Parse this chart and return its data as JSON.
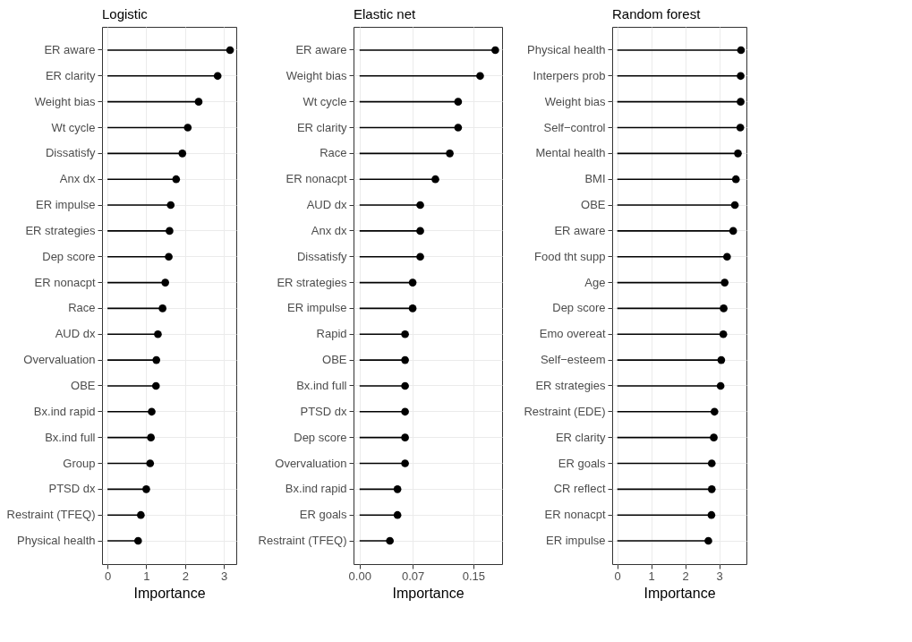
{
  "chart_data": [
    {
      "type": "lollipop",
      "title": "Logistic",
      "xlabel": "Importance",
      "orientation": "horizontal",
      "color": "#000000",
      "grid": true,
      "xlim": [
        -0.14,
        3.32
      ],
      "xticks": [
        0,
        1,
        2,
        3
      ],
      "categories": [
        "ER aware",
        "ER clarity",
        "Weight bias",
        "Wt cycle",
        "Dissatisfy",
        "Anx dx",
        "ER impulse",
        "ER strategies",
        "Dep score",
        "ER nonacpt",
        "Race",
        "AUD dx",
        "Overvaluation",
        "OBE",
        "Bx.ind rapid",
        "Bx.ind full",
        "Group",
        "PTSD dx",
        "Restraint (TFEQ)",
        "Physical health"
      ],
      "values": [
        3.16,
        2.84,
        2.35,
        2.07,
        1.93,
        1.77,
        1.63,
        1.6,
        1.58,
        1.49,
        1.42,
        1.3,
        1.26,
        1.25,
        1.14,
        1.12,
        1.1,
        1.0,
        0.86,
        0.79
      ]
    },
    {
      "type": "lollipop",
      "title": "Elastic net",
      "xlabel": "Importance",
      "orientation": "horizontal",
      "color": "#000000",
      "grid": true,
      "xlim": [
        -0.008,
        0.188
      ],
      "xticks": [
        {
          "value": 0,
          "label": "0.00"
        },
        0.07,
        0.15
      ],
      "categories": [
        "ER aware",
        "Weight bias",
        "Wt cycle",
        "ER clarity",
        "Race",
        "ER nonacpt",
        "AUD dx",
        "Anx dx",
        "Dissatisfy",
        "ER strategies",
        "ER impulse",
        "Rapid",
        "OBE",
        "Bx.ind full",
        "PTSD dx",
        "Dep score",
        "Overvaluation",
        "Bx.ind rapid",
        "ER goals",
        "Restraint (TFEQ)"
      ],
      "values": [
        0.179,
        0.159,
        0.13,
        0.13,
        0.119,
        0.1,
        0.08,
        0.08,
        0.08,
        0.07,
        0.07,
        0.06,
        0.06,
        0.06,
        0.06,
        0.06,
        0.06,
        0.05,
        0.05,
        0.04
      ]
    },
    {
      "type": "lollipop",
      "title": "Random forest",
      "xlabel": "Importance",
      "orientation": "horizontal",
      "color": "#000000",
      "grid": true,
      "xlim": [
        -0.15,
        3.8
      ],
      "xticks": [
        0,
        1,
        2,
        3
      ],
      "categories": [
        "Physical health",
        "Interpers prob",
        "Weight bias",
        "Self−control",
        "Mental health",
        "BMI",
        "OBE",
        "ER aware",
        "Food tht supp",
        "Age",
        "Dep score",
        "Emo overeat",
        "Self−esteem",
        "ER strategies",
        "Restraint (EDE)",
        "ER clarity",
        "ER goals",
        "CR reflect",
        "ER nonacpt",
        "ER impulse"
      ],
      "values": [
        3.64,
        3.63,
        3.63,
        3.62,
        3.55,
        3.49,
        3.46,
        3.41,
        3.23,
        3.16,
        3.13,
        3.12,
        3.06,
        3.04,
        2.86,
        2.84,
        2.78,
        2.78,
        2.77,
        2.68
      ]
    }
  ]
}
